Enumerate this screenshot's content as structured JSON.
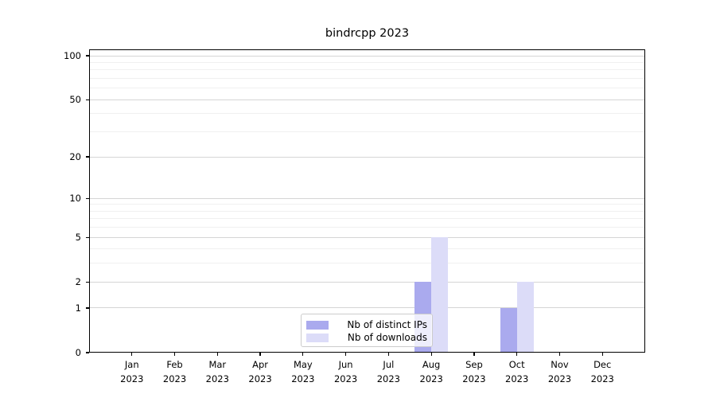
{
  "chart_data": {
    "type": "bar",
    "title": "bindrcpp 2023",
    "categories": [
      "Jan",
      "Feb",
      "Mar",
      "Apr",
      "May",
      "Jun",
      "Jul",
      "Aug",
      "Sep",
      "Oct",
      "Nov",
      "Dec"
    ],
    "year": "2023",
    "series": [
      {
        "name": "Nb of distinct IPs",
        "color": "#aaaaee",
        "values": [
          0,
          0,
          0,
          0,
          0,
          0,
          0,
          2,
          0,
          1,
          0,
          0
        ]
      },
      {
        "name": "Nb of downloads",
        "color": "#dcdcf8",
        "values": [
          0,
          0,
          0,
          0,
          0,
          0,
          0,
          5,
          0,
          2,
          0,
          0
        ]
      }
    ],
    "xlabel": "",
    "ylabel": "",
    "yscale": "log1p",
    "ylim": [
      0,
      110
    ],
    "y_major_ticks": [
      0,
      1,
      2,
      5,
      10,
      20,
      50,
      100
    ],
    "y_minor_gridlines": [
      3,
      4,
      6,
      7,
      8,
      9,
      30,
      40,
      60,
      70,
      80,
      90
    ],
    "grid": "horizontal",
    "legend_position": "lower-center"
  },
  "colors": {
    "major_gridline": "#d5d5d5",
    "minor_gridline": "#f0f0f0",
    "axis": "#000000",
    "legend_border": "#cccccc"
  }
}
